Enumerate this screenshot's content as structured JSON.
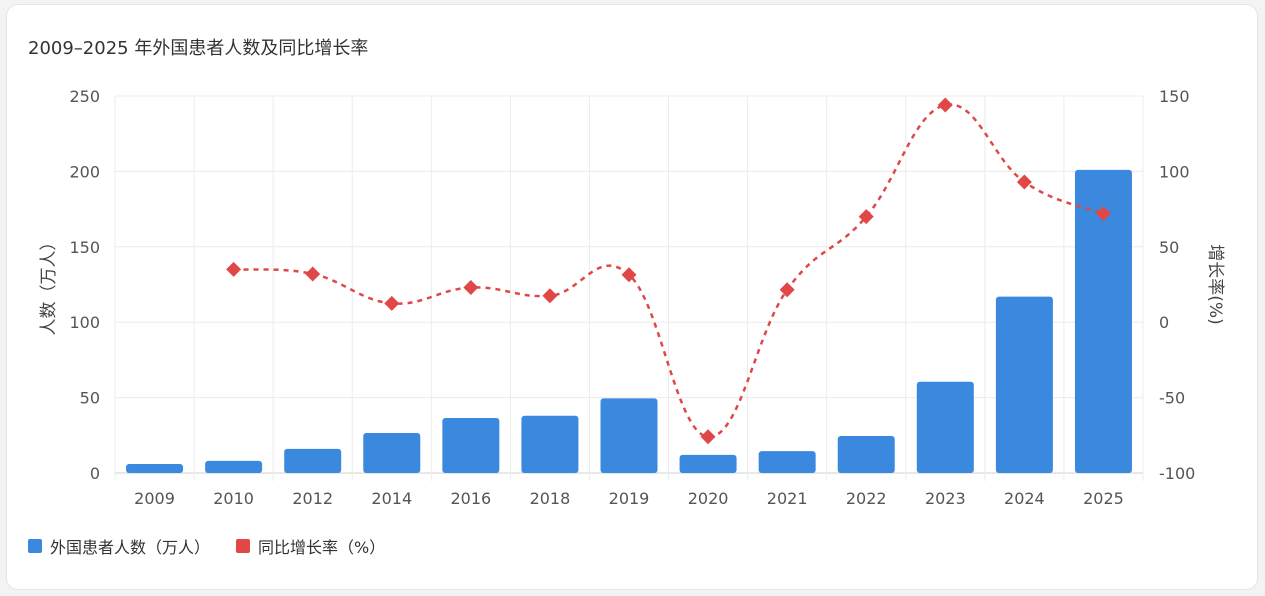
{
  "chart_data": {
    "type": "bar",
    "title": "2009–2025 年外国患者人数及同比增长率",
    "categories": [
      "2009",
      "2010",
      "2012",
      "2014",
      "2016",
      "2018",
      "2019",
      "2020",
      "2021",
      "2022",
      "2023",
      "2024",
      "2025"
    ],
    "series": [
      {
        "name": "外国患者人数（万人）",
        "type": "bar",
        "axis": "left",
        "color": "#3a89de",
        "values": [
          6,
          8,
          16,
          26.5,
          36.5,
          38,
          49.5,
          12,
          14.5,
          24.5,
          60.5,
          117,
          201
        ]
      },
      {
        "name": "同比增长率（%）",
        "type": "line",
        "axis": "right",
        "color": "#e04848",
        "values": [
          null,
          35,
          32,
          12.5,
          23,
          17.5,
          31.5,
          -76,
          21.5,
          70,
          144,
          93,
          72
        ]
      }
    ],
    "ylabel_left": "人数（万人）",
    "ylabel_right": "增长率(%)",
    "ylim_left": [
      0,
      250
    ],
    "yticks_left": [
      "0",
      "50",
      "100",
      "150",
      "200",
      "250"
    ],
    "ylim_right": [
      -100,
      150
    ],
    "yticks_right": [
      "-100",
      "-50",
      "0",
      "50",
      "100",
      "150"
    ],
    "grid": true,
    "legend_position": "bottom-left"
  }
}
